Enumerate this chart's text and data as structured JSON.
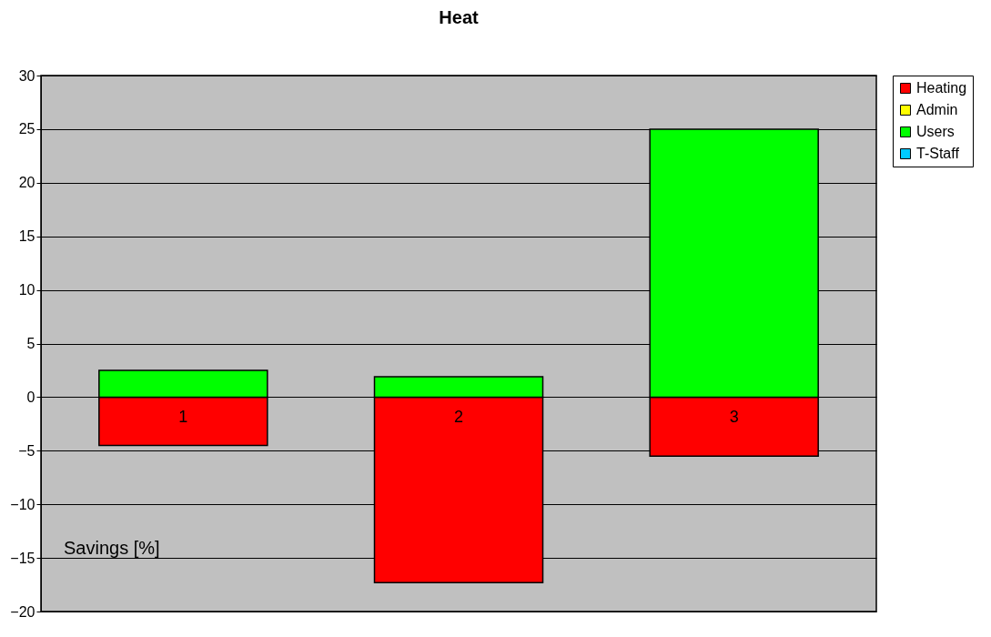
{
  "chart_data": {
    "type": "bar",
    "title": "Heat",
    "ylabel": "Savings [%]",
    "stacked": true,
    "categories": [
      "1",
      "2",
      "3"
    ],
    "series": [
      {
        "name": "Heating",
        "color": "#ff0000",
        "values": [
          -4.5,
          -17.3,
          -5.5
        ]
      },
      {
        "name": "Admin",
        "color": "#ffff00",
        "values": [
          null,
          null,
          null
        ]
      },
      {
        "name": "Users",
        "color": "#00ff00",
        "values": [
          2.5,
          1.9,
          25
        ]
      },
      {
        "name": "T-Staff",
        "color": "#00ccff",
        "values": [
          null,
          null,
          null
        ]
      }
    ],
    "ylim": [
      -20,
      30
    ],
    "yticks": [
      -20,
      -15,
      -10,
      -5,
      0,
      5,
      10,
      15,
      20,
      25,
      30
    ],
    "grid": "y",
    "legend": "right"
  }
}
